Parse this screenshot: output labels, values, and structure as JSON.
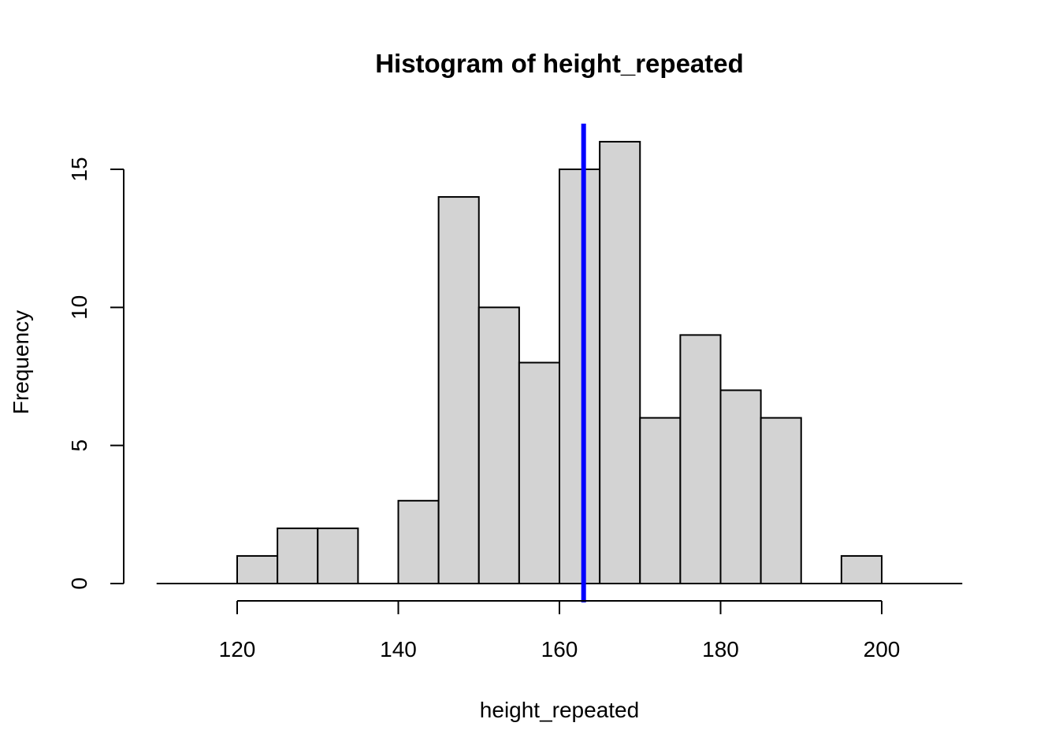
{
  "chart_data": {
    "type": "bar",
    "title": "Histogram of height_repeated",
    "xlabel": "height_repeated",
    "ylabel": "Frequency",
    "xlim": [
      110,
      210
    ],
    "ylim": [
      0,
      16.5
    ],
    "x_ticks": [
      120,
      140,
      160,
      180,
      200
    ],
    "x_tick_labels": [
      "120",
      "140",
      "160",
      "180",
      "200"
    ],
    "y_ticks": [
      0,
      5,
      10,
      15
    ],
    "y_tick_labels": [
      "0",
      "5",
      "10",
      "15"
    ],
    "bin_width": 5,
    "bins": [
      {
        "start": 120,
        "end": 125,
        "count": 1
      },
      {
        "start": 125,
        "end": 130,
        "count": 2
      },
      {
        "start": 130,
        "end": 135,
        "count": 2
      },
      {
        "start": 135,
        "end": 140,
        "count": 0
      },
      {
        "start": 140,
        "end": 145,
        "count": 3
      },
      {
        "start": 145,
        "end": 150,
        "count": 14
      },
      {
        "start": 150,
        "end": 155,
        "count": 10
      },
      {
        "start": 155,
        "end": 160,
        "count": 8
      },
      {
        "start": 160,
        "end": 165,
        "count": 15
      },
      {
        "start": 165,
        "end": 170,
        "count": 16
      },
      {
        "start": 170,
        "end": 175,
        "count": 6
      },
      {
        "start": 175,
        "end": 180,
        "count": 9
      },
      {
        "start": 180,
        "end": 185,
        "count": 7
      },
      {
        "start": 185,
        "end": 190,
        "count": 6
      },
      {
        "start": 190,
        "end": 195,
        "count": 0
      },
      {
        "start": 195,
        "end": 200,
        "count": 1
      }
    ],
    "reference_line": {
      "x": 163,
      "color": "#0000ff"
    },
    "bar_fill": "#d3d3d3",
    "bar_stroke": "#000000",
    "grid": false
  }
}
